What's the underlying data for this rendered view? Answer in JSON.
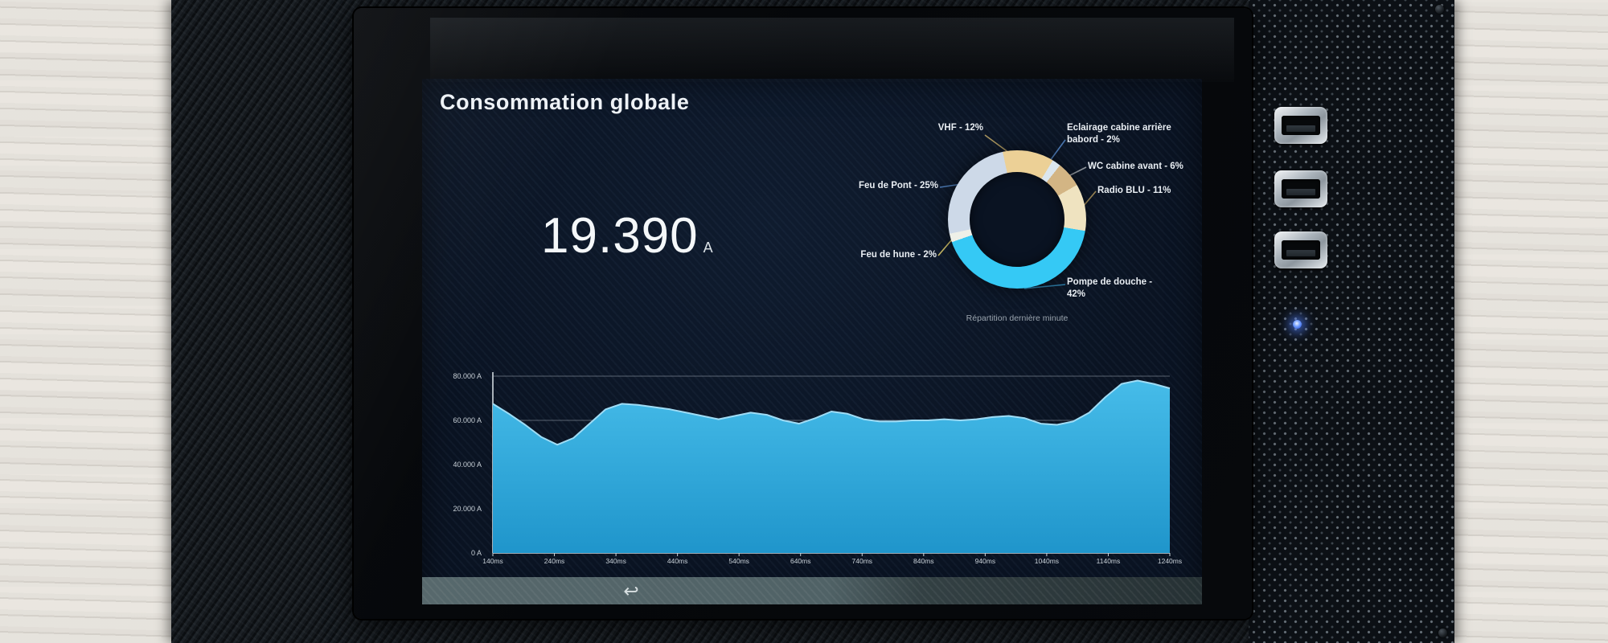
{
  "screen": {
    "title": "Consommation globale",
    "reading": {
      "value": "19.390",
      "unit": "A"
    },
    "nav": {
      "back_icon": "↩"
    }
  },
  "chart_data": [
    {
      "type": "pie",
      "title": "Répartition dernière minute",
      "donut": true,
      "start_angle_deg": -12,
      "legend_position": "around",
      "unit": "%",
      "segments": [
        {
          "label": "VHF",
          "value": 12,
          "display": "VHF - 12%",
          "color": "#ecd096",
          "leader_color": "#a8945e"
        },
        {
          "label": "Eclairage cabine arrière babord",
          "value": 2,
          "display": "Eclairage cabine arrière\nbabord - 2%",
          "color": "#dbe6ee",
          "leader_color": "#4a77b0"
        },
        {
          "label": "WC cabine avant",
          "value": 6,
          "display": "WC cabine avant - 6%",
          "color": "#d3b584",
          "leader_color": "#8f959c"
        },
        {
          "label": "Radio BLU",
          "value": 11,
          "display": "Radio BLU - 11%",
          "color": "#efe3c0",
          "leader_color": "#a08a58"
        },
        {
          "label": "Pompe de douche",
          "value": 42,
          "display": "Pompe de douche -\n42%",
          "color": "#35c9f5",
          "leader_color": "#2e7da8"
        },
        {
          "label": "Feu de hune",
          "value": 2,
          "display": "Feu de hune - 2%",
          "color": "#eef0e8",
          "leader_color": "#c9b964"
        },
        {
          "label": "Feu de Pont",
          "value": 25,
          "display": "Feu de Pont - 25%",
          "color": "#cdd9e8",
          "leader_color": "#4a77b0"
        }
      ]
    },
    {
      "type": "area",
      "ylabel": "A",
      "ylim": [
        0,
        80000
      ],
      "grid": true,
      "y_ticks": [
        {
          "value": 80000,
          "label": "80.000 A"
        },
        {
          "value": 60000,
          "label": "60.000 A"
        },
        {
          "value": 40000,
          "label": "40.000 A"
        },
        {
          "value": 20000,
          "label": "20.000 A"
        },
        {
          "value": 0,
          "label": "0 A"
        }
      ],
      "x_ticks": [
        "140ms",
        "240ms",
        "340ms",
        "440ms",
        "540ms",
        "640ms",
        "740ms",
        "840ms",
        "940ms",
        "1040ms",
        "1140ms",
        "1240ms"
      ],
      "values": [
        67500,
        63000,
        58000,
        52500,
        49000,
        52000,
        58500,
        65000,
        67500,
        67000,
        66000,
        65000,
        63500,
        62000,
        60500,
        62000,
        63500,
        62500,
        60000,
        58500,
        61000,
        64000,
        63000,
        60500,
        59500,
        59500,
        60000,
        60000,
        60500,
        60000,
        60500,
        61500,
        62000,
        61000,
        58500,
        58000,
        59500,
        63500,
        70500,
        76500,
        78000,
        76500,
        74500
      ],
      "color": "#2da7db"
    }
  ],
  "device": {
    "usb_port_count": 3,
    "led_color": "#4d7dff"
  }
}
